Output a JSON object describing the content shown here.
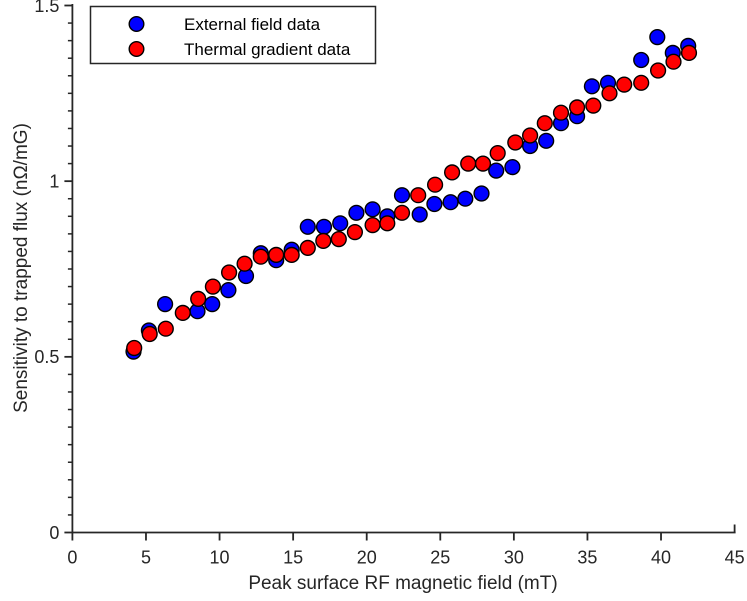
{
  "figure": {
    "background_color": "#ffffff",
    "axis_color": "#262626"
  },
  "chart_data": {
    "type": "scatter",
    "title": "",
    "xlabel": "Peak surface RF magnetic field (mT)",
    "ylabel": "Sensitivity to trapped flux (nΩ/mG)",
    "xlim": [
      0,
      45
    ],
    "ylim": [
      0,
      1.5
    ],
    "x_ticks": [
      0,
      5,
      10,
      15,
      20,
      25,
      30,
      35,
      40,
      45
    ],
    "y_ticks": [
      0,
      0.5,
      1,
      1.5
    ],
    "y_tick_labels": [
      "0",
      "0.5",
      "1",
      "1.5"
    ],
    "y_minor_tick_step": 0.05,
    "grid": false,
    "legend_position": "top-left",
    "marker": {
      "shape": "circle",
      "edge_color": "#000000"
    },
    "series": [
      {
        "name": "External field data",
        "color": "#0000ff",
        "points": [
          [
            4.15,
            0.515
          ],
          [
            5.2,
            0.575
          ],
          [
            6.3,
            0.65
          ],
          [
            8.5,
            0.63
          ],
          [
            9.5,
            0.65
          ],
          [
            10.6,
            0.69
          ],
          [
            11.8,
            0.73
          ],
          [
            12.8,
            0.795
          ],
          [
            13.85,
            0.775
          ],
          [
            14.9,
            0.805
          ],
          [
            16.0,
            0.87
          ],
          [
            17.1,
            0.87
          ],
          [
            18.2,
            0.88
          ],
          [
            19.3,
            0.91
          ],
          [
            20.4,
            0.92
          ],
          [
            21.4,
            0.9
          ],
          [
            22.4,
            0.96
          ],
          [
            23.6,
            0.905
          ],
          [
            24.6,
            0.935
          ],
          [
            25.7,
            0.94
          ],
          [
            26.7,
            0.95
          ],
          [
            27.8,
            0.965
          ],
          [
            28.8,
            1.03
          ],
          [
            29.9,
            1.04
          ],
          [
            31.1,
            1.1
          ],
          [
            32.2,
            1.115
          ],
          [
            33.2,
            1.165
          ],
          [
            34.3,
            1.185
          ],
          [
            35.3,
            1.27
          ],
          [
            36.4,
            1.28
          ],
          [
            38.65,
            1.345
          ],
          [
            39.75,
            1.41
          ],
          [
            40.8,
            1.365
          ],
          [
            41.85,
            1.385
          ]
        ]
      },
      {
        "name": "Thermal gradient data",
        "color": "#ff0000",
        "points": [
          [
            4.2,
            0.525
          ],
          [
            5.25,
            0.565
          ],
          [
            6.35,
            0.58
          ],
          [
            7.5,
            0.625
          ],
          [
            8.55,
            0.665
          ],
          [
            9.55,
            0.7
          ],
          [
            10.65,
            0.74
          ],
          [
            11.7,
            0.765
          ],
          [
            12.8,
            0.785
          ],
          [
            13.85,
            0.79
          ],
          [
            14.9,
            0.79
          ],
          [
            16.0,
            0.81
          ],
          [
            17.05,
            0.83
          ],
          [
            18.1,
            0.835
          ],
          [
            19.2,
            0.855
          ],
          [
            20.4,
            0.875
          ],
          [
            21.4,
            0.88
          ],
          [
            22.4,
            0.91
          ],
          [
            23.5,
            0.96
          ],
          [
            24.65,
            0.99
          ],
          [
            25.8,
            1.025
          ],
          [
            26.9,
            1.05
          ],
          [
            27.9,
            1.05
          ],
          [
            28.9,
            1.08
          ],
          [
            30.1,
            1.11
          ],
          [
            31.1,
            1.13
          ],
          [
            32.1,
            1.165
          ],
          [
            33.2,
            1.195
          ],
          [
            34.3,
            1.21
          ],
          [
            35.4,
            1.215
          ],
          [
            36.5,
            1.25
          ],
          [
            37.5,
            1.275
          ],
          [
            38.65,
            1.28
          ],
          [
            39.8,
            1.315
          ],
          [
            40.85,
            1.34
          ],
          [
            41.9,
            1.365
          ]
        ]
      }
    ]
  }
}
